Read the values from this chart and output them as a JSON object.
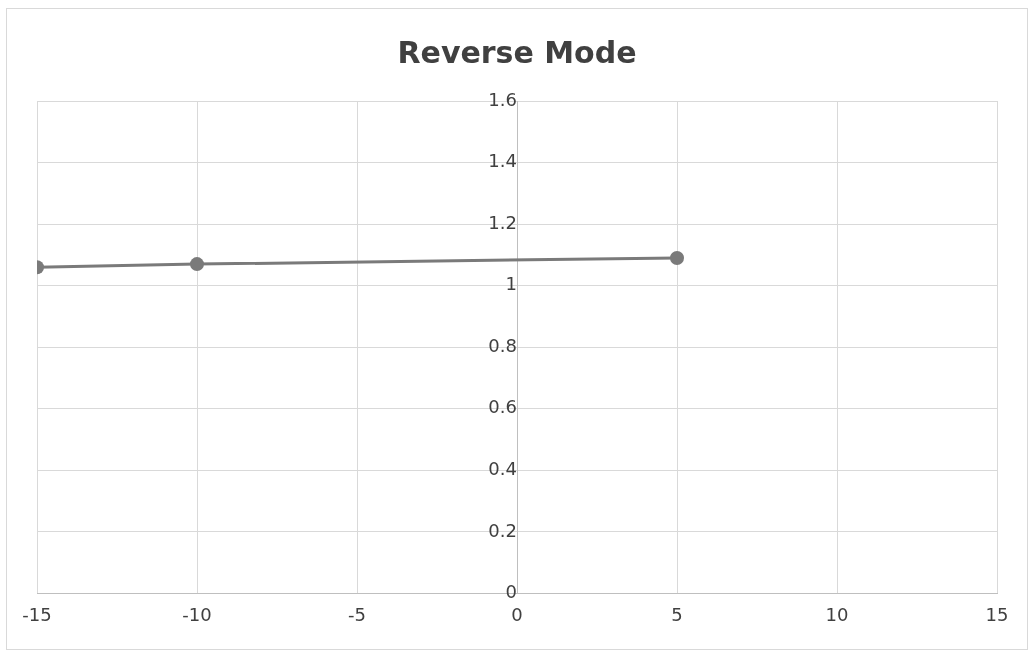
{
  "chart_data": {
    "type": "line",
    "title": "Reverse Mode",
    "x": [
      -15,
      -10,
      5
    ],
    "series": [
      {
        "color": "#7a7a7a",
        "values": [
          1.06,
          1.07,
          1.09
        ]
      }
    ],
    "xlim": [
      -15,
      15
    ],
    "xticks": [
      -15,
      -10,
      -5,
      0,
      5,
      10,
      15
    ],
    "ylim": [
      0,
      1.6
    ],
    "yticks": [
      0,
      0.2,
      0.4,
      0.6,
      0.8,
      1,
      1.2,
      1.4,
      1.6
    ],
    "grid": true,
    "legend": false,
    "marker": "circle",
    "line_style": "solid"
  }
}
